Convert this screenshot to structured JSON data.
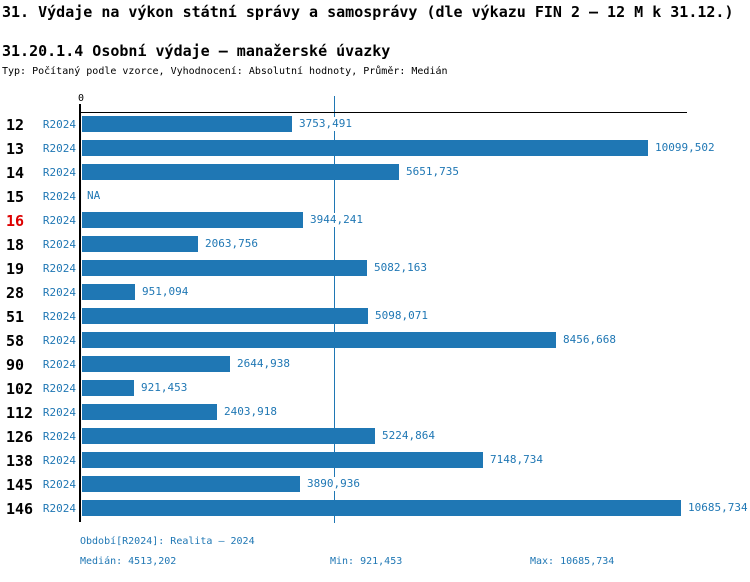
{
  "header": {
    "title": "31. Výdaje na výkon státní správy a samosprávy (dle výkazu FIN 2 – 12 M k 31.12.)",
    "subtitle": "31.20.1.4 Osobní výdaje – manažerské úvazky",
    "meta": "Typ: Počítaný podle vzorce, Vyhodnocení: Absolutní hodnoty, Průměr: Medián"
  },
  "chart_data": {
    "type": "bar",
    "orientation": "horizontal",
    "title": "31.20.1.4 Osobní výdaje – manažerské úvazky",
    "series_label": "R2024",
    "axis": {
      "zero_label": "0"
    },
    "xlim": [
      0,
      10810
    ],
    "grid": false,
    "median_value": 4513.202,
    "median_display": "4513,202",
    "min_value": 921.453,
    "max_value": 10685.734,
    "categories": [
      "12",
      "13",
      "14",
      "15",
      "16",
      "18",
      "19",
      "28",
      "51",
      "58",
      "90",
      "102",
      "112",
      "126",
      "138",
      "145",
      "146"
    ],
    "rows": [
      {
        "id": "12",
        "value": 3753.491,
        "display": "3753,491",
        "highlight": false
      },
      {
        "id": "13",
        "value": 10099.502,
        "display": "10099,502",
        "highlight": false
      },
      {
        "id": "14",
        "value": 5651.735,
        "display": "5651,735",
        "highlight": false
      },
      {
        "id": "15",
        "value": null,
        "display": "NA",
        "highlight": false
      },
      {
        "id": "16",
        "value": 3944.241,
        "display": "3944,241",
        "highlight": true
      },
      {
        "id": "18",
        "value": 2063.756,
        "display": "2063,756",
        "highlight": false
      },
      {
        "id": "19",
        "value": 5082.163,
        "display": "5082,163",
        "highlight": false
      },
      {
        "id": "28",
        "value": 951.094,
        "display": "951,094",
        "highlight": false
      },
      {
        "id": "51",
        "value": 5098.071,
        "display": "5098,071",
        "highlight": false
      },
      {
        "id": "58",
        "value": 8456.668,
        "display": "8456,668",
        "highlight": false
      },
      {
        "id": "90",
        "value": 2644.938,
        "display": "2644,938",
        "highlight": false
      },
      {
        "id": "102",
        "value": 921.453,
        "display": "921,453",
        "highlight": false
      },
      {
        "id": "112",
        "value": 2403.918,
        "display": "2403,918",
        "highlight": false
      },
      {
        "id": "126",
        "value": 5224.864,
        "display": "5224,864",
        "highlight": false
      },
      {
        "id": "138",
        "value": 7148.734,
        "display": "7148,734",
        "highlight": false
      },
      {
        "id": "145",
        "value": 3890.936,
        "display": "3890,936",
        "highlight": false
      },
      {
        "id": "146",
        "value": 10685.734,
        "display": "10685,734",
        "highlight": false
      }
    ],
    "colors": {
      "bar": "#1F77B4",
      "value_text": "#1F77B4",
      "median_line": "#1F77B4",
      "highlight_row_id": "#DD0000",
      "axis": "#000000"
    }
  },
  "footer": {
    "period": "Období[R2024]: Realita – 2024",
    "median": "Medián: 4513,202",
    "min": "Min: 921,453",
    "max": "Max: 10685,734"
  }
}
